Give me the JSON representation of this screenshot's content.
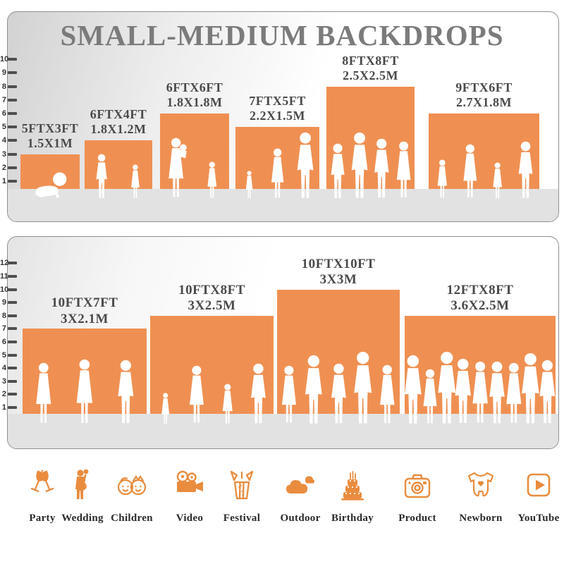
{
  "title": "SMALL-MEDIUM BACKDROPS",
  "colors": {
    "bar_orange": "#EF9052",
    "icon_orange": "#E98C3E",
    "title_gray": "#7B7B7B",
    "label_gray": "#4A4A4A",
    "floor_gray": "#E2E2E2",
    "panel_border": "#8F8F8F"
  },
  "chart_data": [
    {
      "type": "bar",
      "title": "small backdrops size comparison",
      "units": "feet",
      "axis": {
        "min": 1,
        "max": 10,
        "grid": false,
        "position": "left"
      },
      "bars": [
        {
          "size_ft": "5FTX3FT",
          "size_m": "1.5X1M",
          "width_ft": 5,
          "height_ft": 3,
          "figures": [
            "baby"
          ]
        },
        {
          "size_ft": "6FTX4FT",
          "size_m": "1.8X1.2M",
          "width_ft": 6,
          "height_ft": 4,
          "figures": [
            "boy",
            "girl"
          ]
        },
        {
          "size_ft": "6FTX6FT",
          "size_m": "1.8X1.8M",
          "width_ft": 6,
          "height_ft": 6,
          "figures": [
            "woman-holding-baby",
            "girl"
          ]
        },
        {
          "size_ft": "7FTX5FT",
          "size_m": "2.2X1.5M",
          "width_ft": 7,
          "height_ft": 5,
          "figures": [
            "toddler",
            "woman",
            "man"
          ]
        },
        {
          "size_ft": "8FTX8FT",
          "size_m": "2.5X2.5M",
          "width_ft": 8,
          "height_ft": 8,
          "figures": [
            "man",
            "man",
            "man",
            "woman"
          ]
        },
        {
          "size_ft": "9FTX6FT",
          "size_m": "2.7X1.8M",
          "width_ft": 9,
          "height_ft": 6,
          "figures": [
            "girl",
            "woman",
            "girl",
            "man"
          ]
        }
      ]
    },
    {
      "type": "bar",
      "title": "medium backdrops size comparison",
      "units": "feet",
      "axis": {
        "min": 1,
        "max": 12,
        "grid": false,
        "position": "left"
      },
      "bars": [
        {
          "size_ft": "10FTX7FT",
          "size_m": "3X2.1M",
          "width_ft": 10,
          "height_ft": 7,
          "figures": [
            "woman",
            "woman",
            "man"
          ]
        },
        {
          "size_ft": "10FTX8FT",
          "size_m": "3X2.5M",
          "width_ft": 10,
          "height_ft": 8,
          "figures": [
            "toddler",
            "woman",
            "girl",
            "man"
          ]
        },
        {
          "size_ft": "10FTX10FT",
          "size_m": "3X3M",
          "width_ft": 10,
          "height_ft": 10,
          "figures": [
            "woman",
            "man",
            "man",
            "man",
            "woman"
          ]
        },
        {
          "size_ft": "12FTX8FT",
          "size_m": "3.6X2.5M",
          "width_ft": 12,
          "height_ft": 8,
          "figures": [
            "man",
            "woman",
            "man",
            "man",
            "woman",
            "man",
            "woman",
            "man",
            "man"
          ]
        }
      ]
    }
  ],
  "categories": [
    {
      "label": "Party",
      "icon": "party-glasses-icon"
    },
    {
      "label": "Wedding",
      "icon": "wedding-couple-icon"
    },
    {
      "label": "Children",
      "icon": "children-faces-icon"
    },
    {
      "label": "Video",
      "icon": "video-camera-icon"
    },
    {
      "label": "Festival",
      "icon": "festival-gift-icon"
    },
    {
      "label": "Outdoor",
      "icon": "outdoor-clouds-icon"
    },
    {
      "label": "Birthday",
      "icon": "birthday-cake-icon"
    },
    {
      "label": "Product",
      "icon": "product-camera-icon"
    },
    {
      "label": "Newborn",
      "icon": "newborn-onesie-icon"
    },
    {
      "label": "YouTube",
      "icon": "youtube-play-icon"
    }
  ]
}
